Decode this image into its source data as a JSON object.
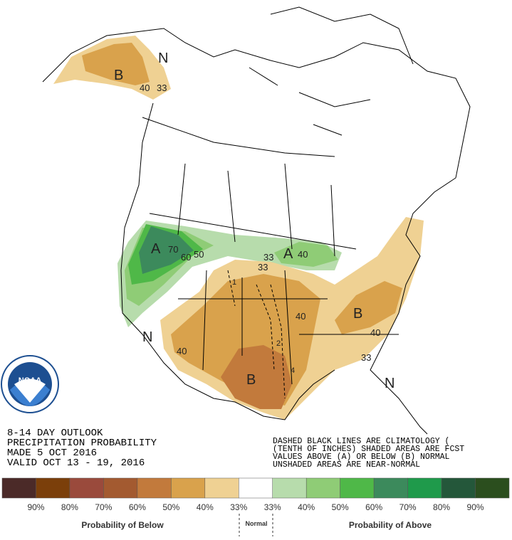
{
  "header": {
    "lines": [
      "8-14 DAY OUTLOOK",
      "PRECIPITATION PROBABILITY",
      "MADE  5 OCT 2016",
      "VALID  OCT 13 - 19, 2016"
    ]
  },
  "notes": {
    "lines": [
      "DASHED BLACK LINES ARE CLIMATOLOGY (",
      "(TENTH OF INCHES) SHADED AREAS ARE FCST",
      "VALUES ABOVE (A) OR BELOW (B) NORMAL",
      "UNSHADED AREAS ARE NEAR-NORMAL"
    ]
  },
  "logo": {
    "text": "NOAA"
  },
  "map": {
    "labels": [
      "B",
      "40",
      "33",
      "N",
      "A",
      "70",
      "60",
      "50",
      "A",
      "40",
      "33",
      "33",
      "B",
      "40",
      "40",
      "B",
      "40",
      "33",
      "N",
      "N",
      "2",
      "1",
      "4"
    ]
  },
  "legend": {
    "colors": [
      "#4b2a28",
      "#7b3f0a",
      "#9a4a3c",
      "#a35a30",
      "#c27a3c",
      "#d9a24c",
      "#efd193",
      "#ffffff",
      "#b7dcac",
      "#8fcc76",
      "#4fb848",
      "#3c8a5c",
      "#1f9a4b",
      "#24573a",
      "#2b4e1e"
    ],
    "labels": [
      "90%",
      "80%",
      "70%",
      "60%",
      "50%",
      "40%",
      "33%",
      "33%",
      "40%",
      "50%",
      "60%",
      "70%",
      "80%",
      "90%"
    ],
    "below": "Probability of Below",
    "normal": "Normal",
    "above": "Probability of Above"
  }
}
